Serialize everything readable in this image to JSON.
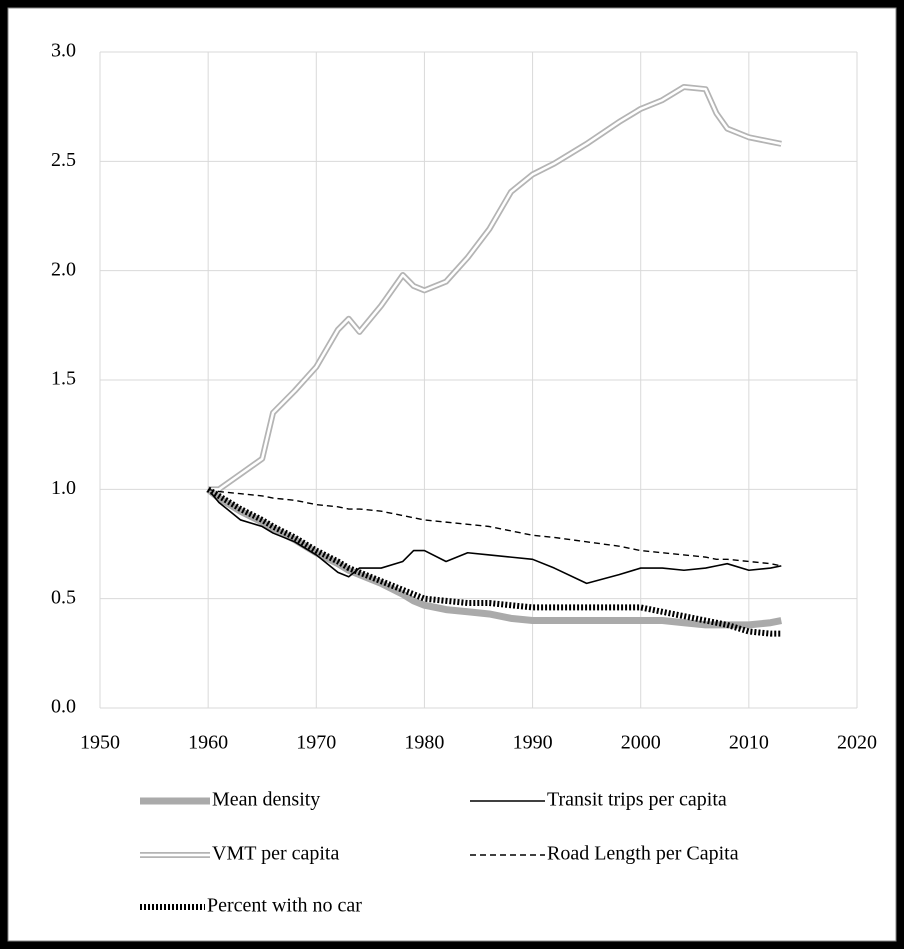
{
  "chart_data": {
    "type": "line",
    "x": [
      1960,
      1961,
      1963,
      1965,
      1966,
      1968,
      1970,
      1972,
      1973,
      1974,
      1976,
      1978,
      1979,
      1980,
      1982,
      1984,
      1986,
      1988,
      1990,
      1992,
      1995,
      1998,
      2000,
      2002,
      2004,
      2006,
      2007,
      2008,
      2010,
      2012,
      2013
    ],
    "series": [
      {
        "name": "Mean density",
        "color": "#aaaaaa",
        "style": "thick",
        "values": [
          1.0,
          0.96,
          0.9,
          0.85,
          0.82,
          0.77,
          0.71,
          0.66,
          0.63,
          0.61,
          0.57,
          0.52,
          0.49,
          0.47,
          0.45,
          0.44,
          0.43,
          0.41,
          0.4,
          0.4,
          0.4,
          0.4,
          0.4,
          0.4,
          0.39,
          0.38,
          0.38,
          0.38,
          0.38,
          0.39,
          0.4
        ]
      },
      {
        "name": "Transit trips per capita",
        "color": "#000000",
        "style": "solid",
        "values": [
          1.0,
          0.94,
          0.86,
          0.83,
          0.8,
          0.76,
          0.7,
          0.62,
          0.6,
          0.64,
          0.64,
          0.67,
          0.72,
          0.72,
          0.67,
          0.71,
          0.7,
          0.69,
          0.68,
          0.64,
          0.57,
          0.61,
          0.64,
          0.64,
          0.63,
          0.64,
          0.65,
          0.66,
          0.63,
          0.64,
          0.65
        ]
      },
      {
        "name": "VMT per capita",
        "color": "#b4b4b4",
        "style": "double",
        "values": [
          1.0,
          1.0,
          1.07,
          1.14,
          1.35,
          1.45,
          1.56,
          1.73,
          1.78,
          1.72,
          1.84,
          1.98,
          1.93,
          1.91,
          1.95,
          2.06,
          2.19,
          2.36,
          2.44,
          2.49,
          2.58,
          2.68,
          2.74,
          2.78,
          2.84,
          2.83,
          2.72,
          2.65,
          2.61,
          2.59,
          2.58
        ]
      },
      {
        "name": "Road Length per Capita",
        "color": "#000000",
        "style": "dashed",
        "values": [
          1.0,
          0.99,
          0.98,
          0.97,
          0.96,
          0.95,
          0.93,
          0.92,
          0.91,
          0.91,
          0.9,
          0.88,
          0.87,
          0.86,
          0.85,
          0.84,
          0.83,
          0.81,
          0.79,
          0.78,
          0.76,
          0.74,
          0.72,
          0.71,
          0.7,
          0.69,
          0.68,
          0.68,
          0.67,
          0.66,
          0.65
        ]
      },
      {
        "name": "Percent with no car",
        "color": "#000000",
        "style": "dotted",
        "values": [
          1.0,
          0.97,
          0.91,
          0.86,
          0.83,
          0.78,
          0.72,
          0.67,
          0.64,
          0.62,
          0.58,
          0.54,
          0.52,
          0.5,
          0.49,
          0.48,
          0.48,
          0.47,
          0.46,
          0.46,
          0.46,
          0.46,
          0.46,
          0.44,
          0.42,
          0.4,
          0.39,
          0.38,
          0.35,
          0.34,
          0.34
        ]
      }
    ],
    "xlim": [
      1950,
      2020
    ],
    "xticks": [
      1950,
      1960,
      1970,
      1980,
      1990,
      2000,
      2010,
      2020
    ],
    "ylim": [
      0,
      3.0
    ],
    "yticks": [
      {
        "value": 0,
        "label": "0.0"
      },
      {
        "value": 0.5,
        "label": "0.5"
      },
      {
        "value": 1.0,
        "label": "1.0"
      },
      {
        "value": 1.5,
        "label": "1.5"
      },
      {
        "value": 2.0,
        "label": "2.0"
      },
      {
        "value": 2.5,
        "label": "2.5"
      },
      {
        "value": 3.0,
        "label": "3.0"
      }
    ],
    "grid": true,
    "legend": "bottom"
  }
}
